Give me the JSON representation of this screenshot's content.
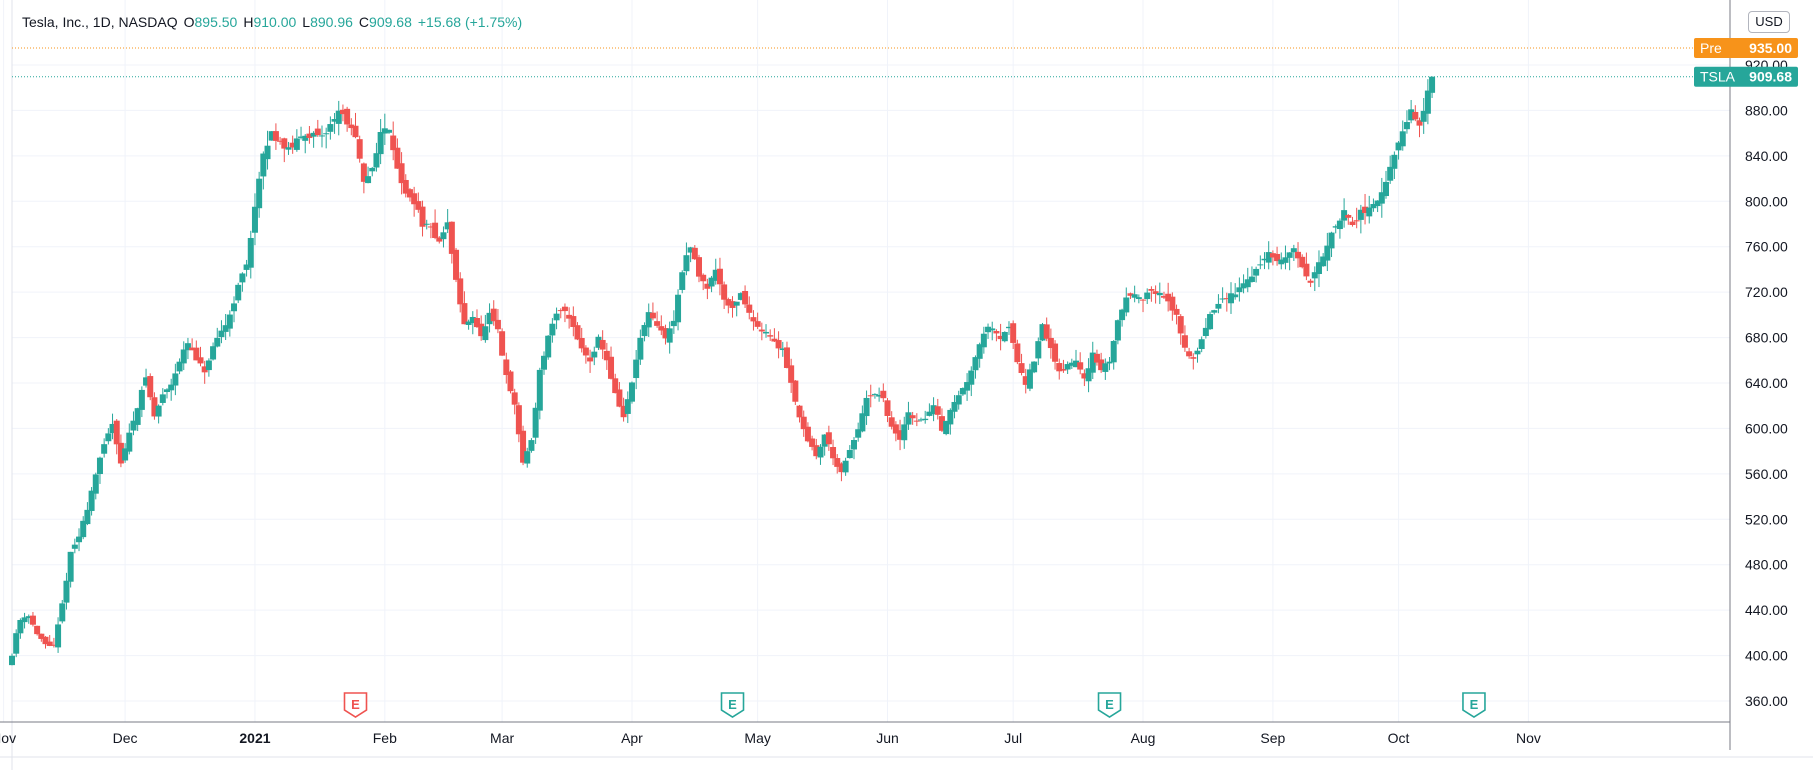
{
  "header": {
    "symbol_info": "Tesla, Inc., 1D, NASDAQ",
    "open_label": "O",
    "open": "895.50",
    "high_label": "H",
    "high": "910.00",
    "low_label": "L",
    "low": "890.96",
    "close_label": "C",
    "close": "909.68",
    "change": "+15.68 (+1.75%)"
  },
  "currency": "USD",
  "price_tags": {
    "pre": {
      "label": "Pre",
      "value": "935.00",
      "color": "#f7931a"
    },
    "last": {
      "label": "TSLA",
      "value": "909.68",
      "color": "#26a69a"
    }
  },
  "colors": {
    "up": "#26a69a",
    "down": "#ef5350",
    "grid": "#f0f3fa",
    "axis_text": "#131722"
  },
  "chart_data": {
    "type": "candlestick",
    "title": "Tesla, Inc., 1D, NASDAQ",
    "ylim": [
      340,
      945
    ],
    "y_ticks": [
      360,
      400,
      440,
      480,
      520,
      560,
      600,
      640,
      680,
      720,
      760,
      800,
      840,
      880,
      920
    ],
    "y_tick_labels": [
      "360.00",
      "400.00",
      "440.00",
      "480.00",
      "520.00",
      "560.00",
      "600.00",
      "640.00",
      "680.00",
      "720.00",
      "760.00",
      "800.00",
      "840.00",
      "880.00",
      "920.00"
    ],
    "x_ticks": [
      {
        "label": "Nov",
        "day": -2,
        "bold": false
      },
      {
        "label": "Dec",
        "day": 27,
        "bold": false
      },
      {
        "label": "2021",
        "day": 58,
        "bold": true
      },
      {
        "label": "Feb",
        "day": 89,
        "bold": false
      },
      {
        "label": "Mar",
        "day": 117,
        "bold": false
      },
      {
        "label": "Apr",
        "day": 148,
        "bold": false
      },
      {
        "label": "May",
        "day": 178,
        "bold": false
      },
      {
        "label": "Jun",
        "day": 209,
        "bold": false
      },
      {
        "label": "Jul",
        "day": 239,
        "bold": false
      },
      {
        "label": "Aug",
        "day": 270,
        "bold": false
      },
      {
        "label": "Sep",
        "day": 301,
        "bold": false
      },
      {
        "label": "Oct",
        "day": 331,
        "bold": false
      },
      {
        "label": "Nov",
        "day": 362,
        "bold": false
      }
    ],
    "earnings": [
      {
        "label": "E",
        "day": 82,
        "color": "#ef5350"
      },
      {
        "label": "E",
        "day": 172,
        "color": "#26a69a"
      },
      {
        "label": "E",
        "day": 262,
        "color": "#26a69a"
      },
      {
        "label": "E",
        "day": 349,
        "color": "#26a69a"
      }
    ],
    "anchors": [
      [
        0,
        400
      ],
      [
        1,
        420
      ],
      [
        2,
        432
      ],
      [
        4,
        436
      ],
      [
        6,
        418
      ],
      [
        8,
        410
      ],
      [
        10,
        408
      ],
      [
        12,
        445
      ],
      [
        14,
        490
      ],
      [
        16,
        505
      ],
      [
        18,
        530
      ],
      [
        20,
        560
      ],
      [
        22,
        585
      ],
      [
        24,
        605
      ],
      [
        26,
        570
      ],
      [
        28,
        595
      ],
      [
        30,
        620
      ],
      [
        32,
        645
      ],
      [
        34,
        610
      ],
      [
        36,
        630
      ],
      [
        38,
        640
      ],
      [
        40,
        660
      ],
      [
        42,
        675
      ],
      [
        44,
        660
      ],
      [
        46,
        650
      ],
      [
        48,
        670
      ],
      [
        50,
        685
      ],
      [
        52,
        700
      ],
      [
        54,
        725
      ],
      [
        56,
        745
      ],
      [
        58,
        795
      ],
      [
        60,
        840
      ],
      [
        62,
        860
      ],
      [
        66,
        845
      ],
      [
        70,
        860
      ],
      [
        74,
        855
      ],
      [
        78,
        880
      ],
      [
        80,
        870
      ],
      [
        82,
        855
      ],
      [
        84,
        815
      ],
      [
        86,
        830
      ],
      [
        88,
        860
      ],
      [
        90,
        865
      ],
      [
        92,
        830
      ],
      [
        94,
        805
      ],
      [
        96,
        800
      ],
      [
        98,
        780
      ],
      [
        100,
        775
      ],
      [
        102,
        765
      ],
      [
        104,
        780
      ],
      [
        106,
        730
      ],
      [
        108,
        690
      ],
      [
        110,
        700
      ],
      [
        112,
        680
      ],
      [
        114,
        700
      ],
      [
        116,
        685
      ],
      [
        118,
        645
      ],
      [
        120,
        620
      ],
      [
        122,
        570
      ],
      [
        124,
        590
      ],
      [
        126,
        650
      ],
      [
        128,
        680
      ],
      [
        130,
        700
      ],
      [
        132,
        705
      ],
      [
        134,
        690
      ],
      [
        136,
        670
      ],
      [
        138,
        660
      ],
      [
        140,
        680
      ],
      [
        142,
        660
      ],
      [
        144,
        630
      ],
      [
        146,
        610
      ],
      [
        148,
        640
      ],
      [
        150,
        680
      ],
      [
        152,
        700
      ],
      [
        154,
        690
      ],
      [
        156,
        680
      ],
      [
        158,
        695
      ],
      [
        160,
        740
      ],
      [
        162,
        760
      ],
      [
        164,
        735
      ],
      [
        166,
        725
      ],
      [
        168,
        740
      ],
      [
        170,
        715
      ],
      [
        172,
        705
      ],
      [
        174,
        720
      ],
      [
        176,
        700
      ],
      [
        178,
        690
      ],
      [
        180,
        685
      ],
      [
        182,
        675
      ],
      [
        184,
        670
      ],
      [
        186,
        640
      ],
      [
        188,
        610
      ],
      [
        190,
        590
      ],
      [
        192,
        575
      ],
      [
        194,
        595
      ],
      [
        196,
        575
      ],
      [
        198,
        560
      ],
      [
        200,
        580
      ],
      [
        202,
        600
      ],
      [
        204,
        625
      ],
      [
        206,
        630
      ],
      [
        208,
        625
      ],
      [
        210,
        600
      ],
      [
        212,
        590
      ],
      [
        214,
        615
      ],
      [
        216,
        605
      ],
      [
        218,
        610
      ],
      [
        220,
        620
      ],
      [
        222,
        600
      ],
      [
        224,
        615
      ],
      [
        226,
        630
      ],
      [
        228,
        640
      ],
      [
        230,
        665
      ],
      [
        232,
        685
      ],
      [
        234,
        690
      ],
      [
        236,
        680
      ],
      [
        238,
        690
      ],
      [
        240,
        660
      ],
      [
        242,
        640
      ],
      [
        244,
        660
      ],
      [
        246,
        690
      ],
      [
        248,
        670
      ],
      [
        250,
        650
      ],
      [
        252,
        655
      ],
      [
        254,
        660
      ],
      [
        256,
        645
      ],
      [
        258,
        665
      ],
      [
        260,
        650
      ],
      [
        262,
        660
      ],
      [
        264,
        695
      ],
      [
        266,
        715
      ],
      [
        268,
        720
      ],
      [
        270,
        715
      ],
      [
        272,
        720
      ],
      [
        274,
        718
      ],
      [
        276,
        710
      ],
      [
        278,
        700
      ],
      [
        280,
        670
      ],
      [
        282,
        660
      ],
      [
        284,
        680
      ],
      [
        286,
        700
      ],
      [
        288,
        710
      ],
      [
        290,
        715
      ],
      [
        292,
        720
      ],
      [
        294,
        728
      ],
      [
        296,
        735
      ],
      [
        298,
        745
      ],
      [
        300,
        755
      ],
      [
        302,
        745
      ],
      [
        304,
        750
      ],
      [
        306,
        760
      ],
      [
        308,
        740
      ],
      [
        310,
        730
      ],
      [
        312,
        745
      ],
      [
        314,
        760
      ],
      [
        316,
        780
      ],
      [
        318,
        790
      ],
      [
        320,
        780
      ],
      [
        322,
        790
      ],
      [
        324,
        795
      ],
      [
        326,
        800
      ],
      [
        328,
        815
      ],
      [
        330,
        840
      ],
      [
        332,
        860
      ],
      [
        334,
        880
      ],
      [
        336,
        865
      ],
      [
        338,
        895
      ],
      [
        339,
        910
      ]
    ],
    "last": {
      "open": 895.5,
      "high": 910.0,
      "low": 890.96,
      "close": 909.68
    },
    "pre_price": 935.0,
    "last_price": 909.68
  }
}
